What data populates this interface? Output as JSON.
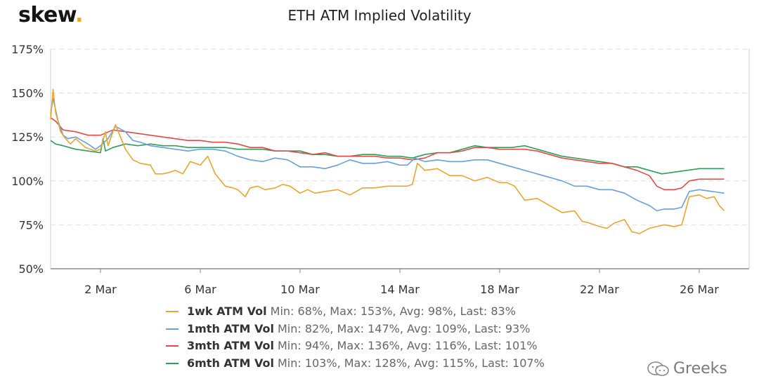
{
  "brand": {
    "name": "skew",
    "dot": "."
  },
  "watermark": {
    "text": "Greeks"
  },
  "chart_data": {
    "type": "line",
    "title": "ETH ATM Implied Volatility",
    "xlabel": "",
    "ylabel": "",
    "x_ticks": [
      "2 Mar",
      "6 Mar",
      "10 Mar",
      "14 Mar",
      "18 Mar",
      "22 Mar",
      "26 Mar"
    ],
    "xlim_days": [
      -1,
      27
    ],
    "y_ticks": [
      "50%",
      "75%",
      "100%",
      "125%",
      "150%",
      "175%"
    ],
    "ylim": [
      50,
      175
    ],
    "grid": "horizontal-dashed",
    "legend_position": "bottom",
    "series": [
      {
        "name": "1wk ATM Vol",
        "color": "#e8a631",
        "stats": "Min: 68%, Max: 153%, Avg: 98%, Last: 83%",
        "points": [
          [
            -1,
            135
          ],
          [
            -0.9,
            152
          ],
          [
            -0.8,
            139
          ],
          [
            -0.6,
            128
          ],
          [
            -0.4,
            124
          ],
          [
            -0.2,
            121
          ],
          [
            0,
            124
          ],
          [
            0.4,
            119
          ],
          [
            0.8,
            117
          ],
          [
            1,
            118
          ],
          [
            1.2,
            128
          ],
          [
            1.3,
            120
          ],
          [
            1.6,
            132
          ],
          [
            1.8,
            125
          ],
          [
            2,
            118
          ],
          [
            2.3,
            112
          ],
          [
            2.6,
            110
          ],
          [
            3,
            109
          ],
          [
            3.2,
            104
          ],
          [
            3.5,
            104
          ],
          [
            3.8,
            105
          ],
          [
            4,
            106
          ],
          [
            4.3,
            104
          ],
          [
            4.6,
            111
          ],
          [
            5,
            109
          ],
          [
            5.3,
            114
          ],
          [
            5.6,
            104
          ],
          [
            6,
            97
          ],
          [
            6.3,
            96
          ],
          [
            6.5,
            95
          ],
          [
            6.8,
            91
          ],
          [
            7,
            96
          ],
          [
            7.3,
            97
          ],
          [
            7.6,
            95
          ],
          [
            8,
            96
          ],
          [
            8.3,
            98
          ],
          [
            8.6,
            97
          ],
          [
            9,
            93
          ],
          [
            9.3,
            95
          ],
          [
            9.6,
            93
          ],
          [
            10,
            94
          ],
          [
            10.5,
            95
          ],
          [
            11,
            92
          ],
          [
            11.5,
            96
          ],
          [
            12,
            96
          ],
          [
            12.5,
            97
          ],
          [
            13,
            97
          ],
          [
            13.3,
            97
          ],
          [
            13.5,
            98
          ],
          [
            13.7,
            110
          ],
          [
            14,
            106
          ],
          [
            14.5,
            107
          ],
          [
            15,
            103
          ],
          [
            15.5,
            103
          ],
          [
            16,
            100
          ],
          [
            16.5,
            102
          ],
          [
            17,
            99
          ],
          [
            17.3,
            99
          ],
          [
            17.6,
            97
          ],
          [
            18,
            89
          ],
          [
            18.5,
            90
          ],
          [
            19,
            86
          ],
          [
            19.5,
            82
          ],
          [
            20,
            83
          ],
          [
            20.3,
            77
          ],
          [
            20.6,
            76
          ],
          [
            21,
            74
          ],
          [
            21.3,
            73
          ],
          [
            21.6,
            76
          ],
          [
            22,
            78
          ],
          [
            22.3,
            71
          ],
          [
            22.6,
            70
          ],
          [
            23,
            73
          ],
          [
            23.3,
            74
          ],
          [
            23.6,
            75
          ],
          [
            24,
            74
          ],
          [
            24.3,
            75
          ],
          [
            24.6,
            91
          ],
          [
            25,
            92
          ],
          [
            25.3,
            90
          ],
          [
            25.6,
            91
          ],
          [
            25.8,
            86
          ],
          [
            26,
            83
          ]
        ]
      },
      {
        "name": "1mth ATM Vol",
        "color": "#6a9fd9",
        "stats": "Min: 82%, Max: 147%, Avg: 109%, Last: 93%",
        "points": [
          [
            -1,
            138
          ],
          [
            -0.9,
            147
          ],
          [
            -0.7,
            134
          ],
          [
            -0.5,
            126
          ],
          [
            -0.3,
            124
          ],
          [
            0,
            125
          ],
          [
            0.5,
            121
          ],
          [
            0.8,
            118
          ],
          [
            1,
            120
          ],
          [
            1.3,
            124
          ],
          [
            1.6,
            131
          ],
          [
            2,
            128
          ],
          [
            2.3,
            123
          ],
          [
            2.6,
            122
          ],
          [
            3,
            120
          ],
          [
            3.5,
            119
          ],
          [
            4,
            118
          ],
          [
            4.5,
            117
          ],
          [
            5,
            118
          ],
          [
            5.5,
            118
          ],
          [
            6,
            117
          ],
          [
            6.5,
            114
          ],
          [
            7,
            112
          ],
          [
            7.5,
            111
          ],
          [
            8,
            113
          ],
          [
            8.5,
            112
          ],
          [
            9,
            108
          ],
          [
            9.5,
            108
          ],
          [
            10,
            107
          ],
          [
            10.5,
            109
          ],
          [
            11,
            112
          ],
          [
            11.5,
            110
          ],
          [
            12,
            110
          ],
          [
            12.5,
            111
          ],
          [
            13,
            109
          ],
          [
            13.3,
            109
          ],
          [
            13.6,
            113
          ],
          [
            14,
            111
          ],
          [
            14.5,
            112
          ],
          [
            15,
            111
          ],
          [
            15.5,
            111
          ],
          [
            16,
            112
          ],
          [
            16.5,
            112
          ],
          [
            17,
            110
          ],
          [
            17.5,
            108
          ],
          [
            18,
            106
          ],
          [
            18.5,
            104
          ],
          [
            19,
            102
          ],
          [
            19.5,
            100
          ],
          [
            20,
            97
          ],
          [
            20.5,
            97
          ],
          [
            21,
            95
          ],
          [
            21.5,
            95
          ],
          [
            22,
            93
          ],
          [
            22.5,
            89
          ],
          [
            23,
            86
          ],
          [
            23.3,
            83
          ],
          [
            23.6,
            84
          ],
          [
            24,
            84
          ],
          [
            24.3,
            85
          ],
          [
            24.6,
            94
          ],
          [
            25,
            95
          ],
          [
            25.5,
            94
          ],
          [
            26,
            93
          ]
        ]
      },
      {
        "name": "3mth ATM Vol",
        "color": "#e24a4a",
        "stats": "Min: 94%, Max: 136%, Avg: 116%, Last: 101%",
        "points": [
          [
            -1,
            136
          ],
          [
            -0.8,
            134
          ],
          [
            -0.5,
            129
          ],
          [
            0,
            128
          ],
          [
            0.5,
            126
          ],
          [
            1,
            126
          ],
          [
            1.5,
            129
          ],
          [
            2,
            128
          ],
          [
            2.5,
            127
          ],
          [
            3,
            126
          ],
          [
            3.5,
            125
          ],
          [
            4,
            124
          ],
          [
            4.5,
            123
          ],
          [
            5,
            123
          ],
          [
            5.5,
            122
          ],
          [
            6,
            122
          ],
          [
            6.5,
            121
          ],
          [
            7,
            119
          ],
          [
            7.5,
            119
          ],
          [
            8,
            117
          ],
          [
            8.5,
            117
          ],
          [
            9,
            116
          ],
          [
            9.5,
            115
          ],
          [
            10,
            116
          ],
          [
            10.5,
            114
          ],
          [
            11,
            114
          ],
          [
            11.5,
            114
          ],
          [
            12,
            114
          ],
          [
            12.5,
            113
          ],
          [
            13,
            113
          ],
          [
            13.5,
            112
          ],
          [
            14,
            113
          ],
          [
            14.5,
            116
          ],
          [
            15,
            116
          ],
          [
            15.5,
            117
          ],
          [
            16,
            119
          ],
          [
            16.5,
            119
          ],
          [
            17,
            118
          ],
          [
            17.5,
            118
          ],
          [
            18,
            118
          ],
          [
            18.5,
            117
          ],
          [
            19,
            115
          ],
          [
            19.5,
            113
          ],
          [
            20,
            112
          ],
          [
            20.5,
            111
          ],
          [
            21,
            110
          ],
          [
            21.5,
            110
          ],
          [
            22,
            108
          ],
          [
            22.5,
            106
          ],
          [
            23,
            103
          ],
          [
            23.3,
            97
          ],
          [
            23.6,
            95
          ],
          [
            24,
            95
          ],
          [
            24.3,
            96
          ],
          [
            24.6,
            100
          ],
          [
            25,
            101
          ],
          [
            25.5,
            101
          ],
          [
            26,
            101
          ]
        ]
      },
      {
        "name": "6mth ATM Vol",
        "color": "#2e9e5b",
        "stats": "Min: 103%, Max: 128%, Avg: 115%, Last: 107%",
        "points": [
          [
            -1,
            123
          ],
          [
            -0.8,
            121
          ],
          [
            -0.5,
            120
          ],
          [
            0,
            118
          ],
          [
            0.5,
            117
          ],
          [
            1,
            116
          ],
          [
            1.1,
            124
          ],
          [
            1.2,
            117
          ],
          [
            1.5,
            119
          ],
          [
            2,
            121
          ],
          [
            2.5,
            120
          ],
          [
            3,
            121
          ],
          [
            3.5,
            120
          ],
          [
            4,
            120
          ],
          [
            4.5,
            119
          ],
          [
            5,
            119
          ],
          [
            5.5,
            119
          ],
          [
            6,
            119
          ],
          [
            6.5,
            118
          ],
          [
            7,
            118
          ],
          [
            7.5,
            118
          ],
          [
            8,
            117
          ],
          [
            8.5,
            117
          ],
          [
            9,
            117
          ],
          [
            9.5,
            115
          ],
          [
            10,
            115
          ],
          [
            10.5,
            114
          ],
          [
            11,
            114
          ],
          [
            11.5,
            115
          ],
          [
            12,
            115
          ],
          [
            12.5,
            114
          ],
          [
            13,
            114
          ],
          [
            13.5,
            113
          ],
          [
            14,
            115
          ],
          [
            14.5,
            116
          ],
          [
            15,
            116
          ],
          [
            15.5,
            118
          ],
          [
            16,
            120
          ],
          [
            16.5,
            119
          ],
          [
            17,
            119
          ],
          [
            17.5,
            119
          ],
          [
            18,
            120
          ],
          [
            18.5,
            118
          ],
          [
            19,
            116
          ],
          [
            19.5,
            114
          ],
          [
            20,
            113
          ],
          [
            20.5,
            112
          ],
          [
            21,
            111
          ],
          [
            21.5,
            110
          ],
          [
            22,
            108
          ],
          [
            22.5,
            108
          ],
          [
            23,
            106
          ],
          [
            23.5,
            104
          ],
          [
            24,
            105
          ],
          [
            24.5,
            106
          ],
          [
            25,
            107
          ],
          [
            25.5,
            107
          ],
          [
            26,
            107
          ]
        ]
      }
    ]
  }
}
